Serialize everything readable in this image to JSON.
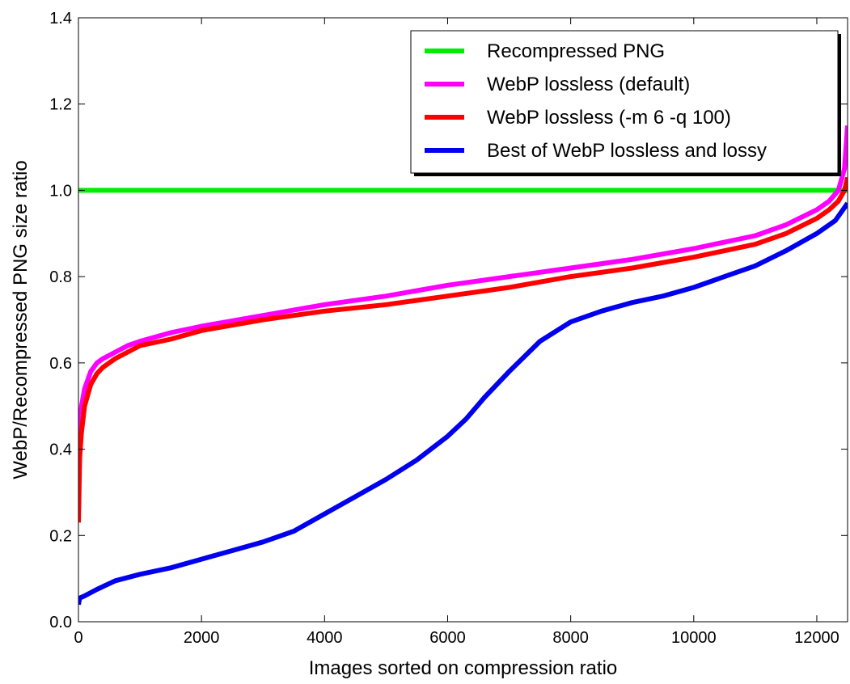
{
  "chart_data": {
    "type": "line",
    "title": "",
    "xlabel": "Images sorted on compression ratio",
    "ylabel": "WebP/Recompressed PNG size ratio",
    "xlim": [
      0,
      12500
    ],
    "ylim": [
      0.0,
      1.4
    ],
    "grid": false,
    "legend_position": "top-right",
    "x_ticks": [
      0,
      2000,
      4000,
      6000,
      8000,
      10000,
      12000
    ],
    "x_tick_labels": [
      "0",
      "2000",
      "4000",
      "6000",
      "8000",
      "10000",
      "12000"
    ],
    "y_ticks": [
      0.0,
      0.2,
      0.4,
      0.6,
      0.8,
      1.0,
      1.2,
      1.4
    ],
    "y_tick_labels": [
      "0.0",
      "0.2",
      "0.4",
      "0.6",
      "0.8",
      "1.0",
      "1.2",
      "1.4"
    ],
    "series": [
      {
        "name": "Recompressed PNG",
        "color": "#00ee00",
        "x": [
          0,
          12500
        ],
        "y": [
          1.0,
          1.0
        ]
      },
      {
        "name": "WebP lossless (default)",
        "color": "#ff00ff",
        "x": [
          0,
          20,
          50,
          100,
          200,
          300,
          400,
          600,
          800,
          1000,
          1500,
          2000,
          3000,
          4000,
          5000,
          6000,
          7000,
          8000,
          9000,
          10000,
          11000,
          11500,
          12000,
          12200,
          12350,
          12450,
          12500
        ],
        "y": [
          0.26,
          0.44,
          0.5,
          0.54,
          0.58,
          0.6,
          0.61,
          0.625,
          0.64,
          0.65,
          0.67,
          0.685,
          0.71,
          0.735,
          0.755,
          0.78,
          0.8,
          0.82,
          0.84,
          0.865,
          0.895,
          0.92,
          0.955,
          0.975,
          1.0,
          1.05,
          1.15
        ]
      },
      {
        "name": "WebP lossless (-m 6 -q 100)",
        "color": "#ff0000",
        "x": [
          0,
          20,
          50,
          100,
          200,
          300,
          400,
          600,
          800,
          1000,
          1500,
          2000,
          3000,
          4000,
          5000,
          6000,
          7000,
          8000,
          9000,
          10000,
          11000,
          11500,
          12000,
          12200,
          12350,
          12450,
          12500
        ],
        "y": [
          0.23,
          0.38,
          0.44,
          0.5,
          0.55,
          0.575,
          0.59,
          0.61,
          0.625,
          0.64,
          0.655,
          0.675,
          0.7,
          0.72,
          0.735,
          0.755,
          0.775,
          0.8,
          0.82,
          0.845,
          0.875,
          0.9,
          0.935,
          0.955,
          0.975,
          1.0,
          1.03
        ]
      },
      {
        "name": "Best of WebP lossless and lossy",
        "color": "#0000ee",
        "x": [
          0,
          20,
          100,
          300,
          600,
          1000,
          1500,
          2000,
          2500,
          3000,
          3500,
          4000,
          4500,
          5000,
          5500,
          6000,
          6300,
          6600,
          7000,
          7500,
          8000,
          8500,
          9000,
          9500,
          10000,
          10500,
          11000,
          11500,
          12000,
          12300,
          12500
        ],
        "y": [
          0.04,
          0.055,
          0.06,
          0.075,
          0.095,
          0.11,
          0.125,
          0.145,
          0.165,
          0.185,
          0.21,
          0.25,
          0.29,
          0.33,
          0.375,
          0.43,
          0.47,
          0.52,
          0.58,
          0.65,
          0.695,
          0.72,
          0.74,
          0.755,
          0.775,
          0.8,
          0.825,
          0.86,
          0.9,
          0.93,
          0.97
        ]
      }
    ]
  }
}
